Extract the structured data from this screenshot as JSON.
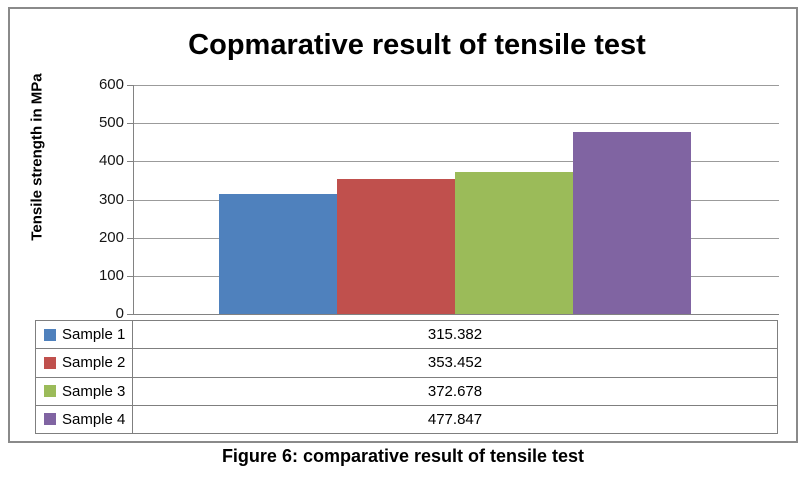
{
  "figure": {
    "caption": "Figure 6: comparative result of tensile test"
  },
  "chart_data": {
    "type": "bar",
    "title": "Copmarative result of tensile test",
    "xlabel": "",
    "ylabel": "Tensile strength in MPa",
    "ylim": [
      0,
      600
    ],
    "yticks": [
      0,
      100,
      200,
      300,
      400,
      500,
      600
    ],
    "grid": true,
    "legend_position": "bottom-table",
    "categories": [
      "Sample 1",
      "Sample 2",
      "Sample 3",
      "Sample 4"
    ],
    "series": [
      {
        "name": "Sample 1",
        "value": 315.382,
        "value_label": "315.382",
        "color": "#4F81BD"
      },
      {
        "name": "Sample 2",
        "value": 353.452,
        "value_label": "353.452",
        "color": "#C0504D"
      },
      {
        "name": "Sample 3",
        "value": 372.678,
        "value_label": "372.678",
        "color": "#9BBB59"
      },
      {
        "name": "Sample 4",
        "value": 477.847,
        "value_label": "477.847",
        "color": "#8064A2"
      }
    ]
  }
}
